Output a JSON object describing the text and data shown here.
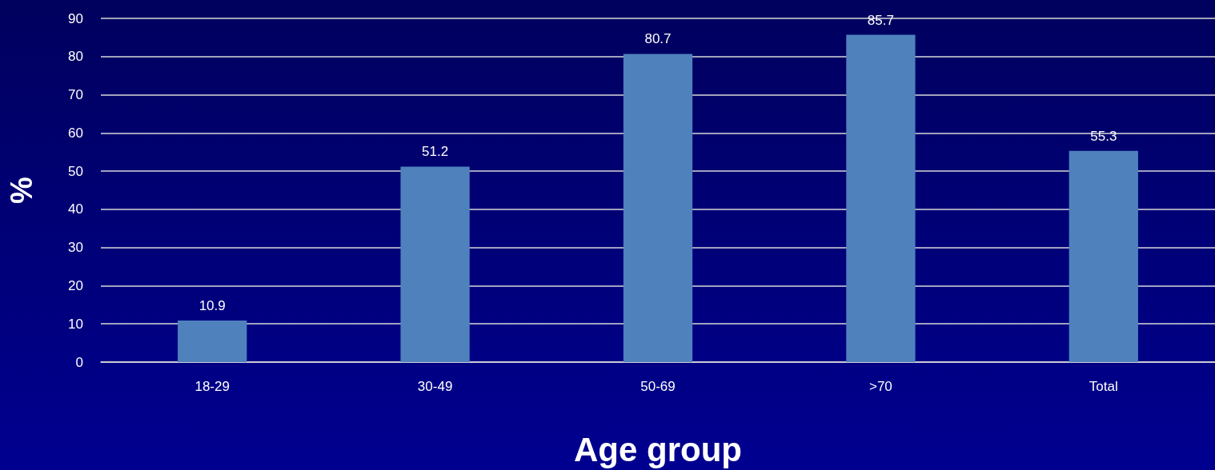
{
  "chart_data": {
    "type": "bar",
    "xlabel": "Age group",
    "ylabel": "%",
    "categories": [
      "18-29",
      "30-49",
      "50-69",
      ">70",
      "Total"
    ],
    "values": [
      10.9,
      51.2,
      80.7,
      85.7,
      55.3
    ],
    "color": "#4f81bd",
    "ylim": [
      0,
      90
    ],
    "yticks": [
      0,
      10,
      20,
      30,
      40,
      50,
      60,
      70,
      80,
      90
    ],
    "grid": "y",
    "data_labels": true
  }
}
